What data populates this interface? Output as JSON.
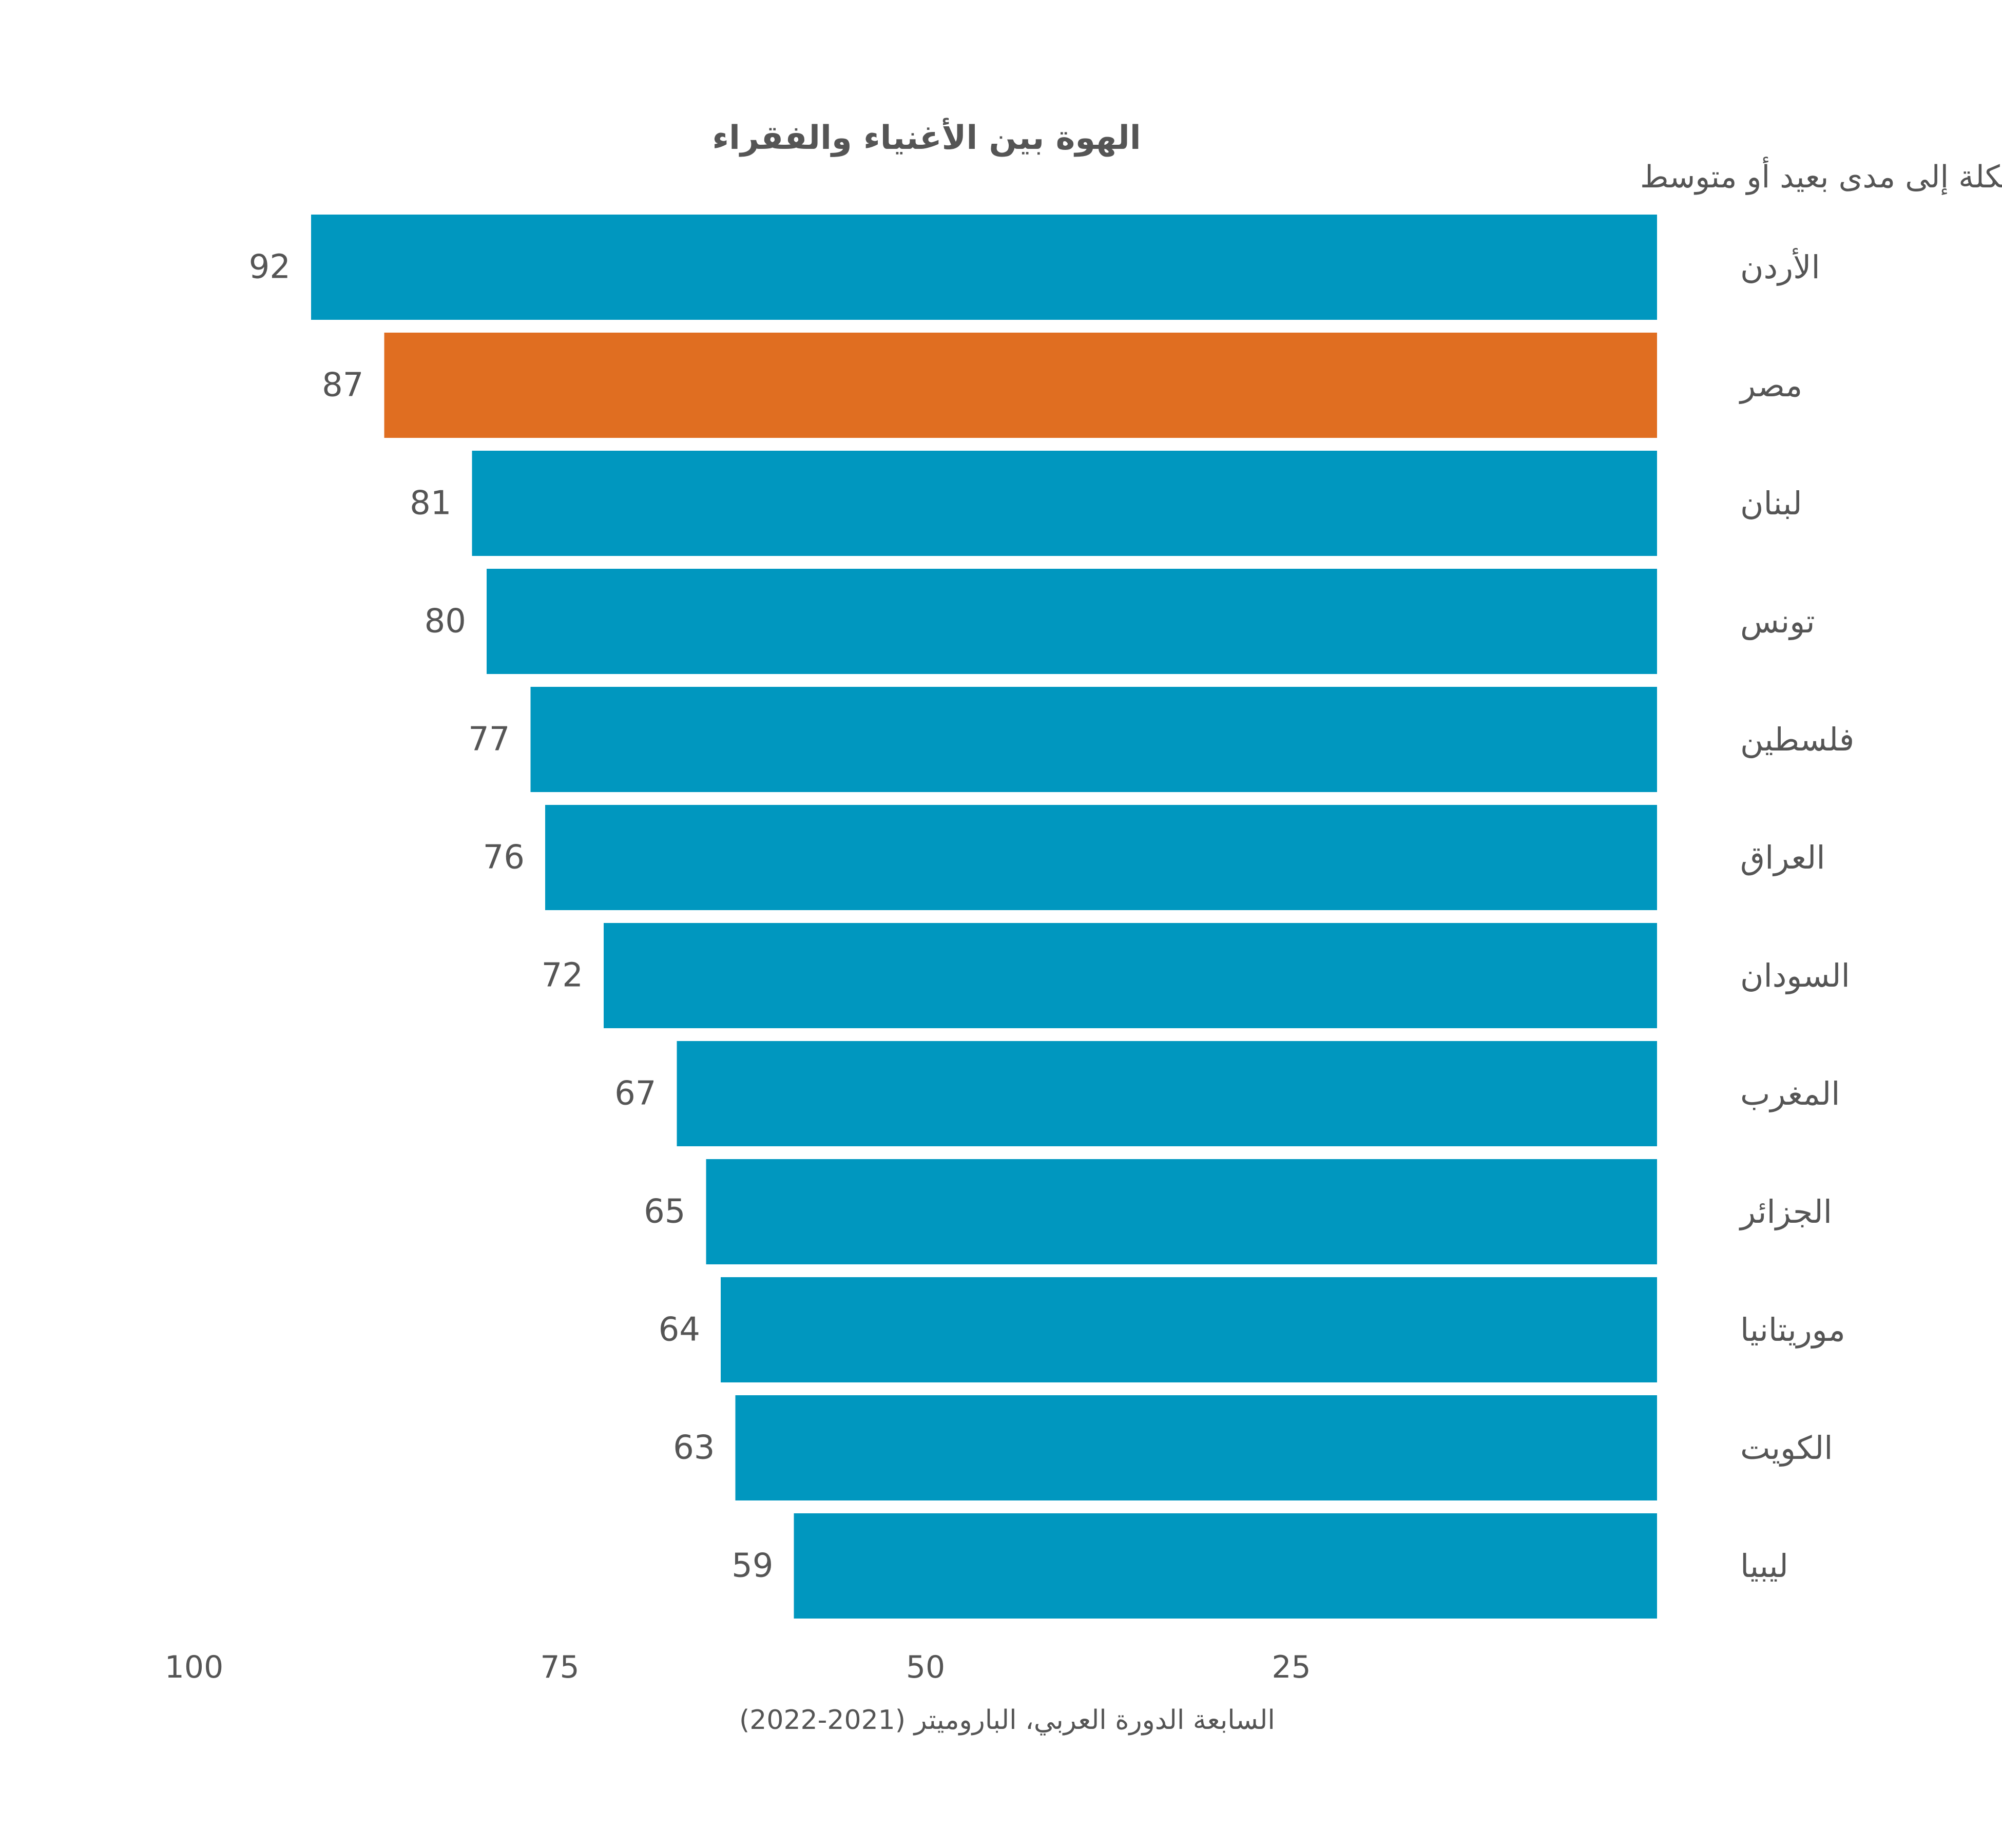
{
  "colors": {
    "default_bar": "#0097bf",
    "highlight_bar": "#e06e21",
    "text": "#555555",
    "background": "#ffffff"
  },
  "chart_data": {
    "type": "bar",
    "orientation": "horizontal",
    "x_direction": "reversed",
    "title": "الهوة بين الأغنياء والفقراء",
    "subtitle": "% من يقولون إن الهوة بين الأغنياء والفقراء تشكل مشكلة إلى مدى بعيد أو متوسط",
    "categories": [
      "الأردن",
      "مصر",
      "لبنان",
      "تونس",
      "فلسطين",
      "العراق",
      "السودان",
      "المغرب",
      "الجزائر",
      "موريتانيا",
      "الكويت",
      "ليبيا"
    ],
    "values": [
      92,
      87,
      81,
      80,
      77,
      76,
      72,
      67,
      65,
      64,
      63,
      59
    ],
    "highlight": [
      "مصر"
    ],
    "xlim": [
      0,
      100
    ],
    "x_ticks": [
      100,
      75,
      50,
      25
    ],
    "xlabel": "",
    "ylabel": "",
    "grid": false,
    "legend": "none",
    "source": "السابعة الدورة العربي، الباروميتر (2021-2022)"
  }
}
